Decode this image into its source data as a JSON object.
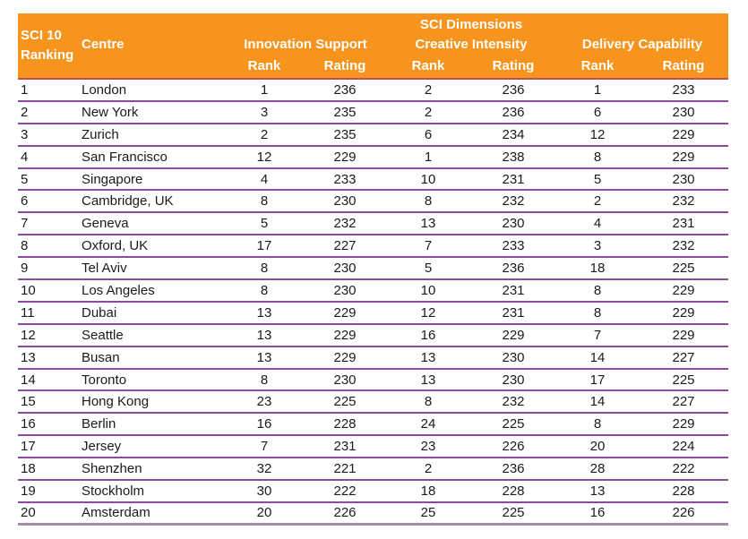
{
  "colors": {
    "header_bg": "#F7941D",
    "header_text": "#FFFFFF",
    "header_underline": "#C0504D",
    "row_line": "#8A4B9C",
    "bottom_line": "#A48BAD",
    "body_text": "#1A1A1A"
  },
  "table": {
    "header": {
      "dimensions_title": "SCI Dimensions",
      "col_ranking": "SCI 10 Ranking",
      "col_centre": "Centre",
      "group_innovation": "Innovation Support",
      "group_creative": "Creative Intensity",
      "group_delivery": "Delivery Capability",
      "sub_rank": "Rank",
      "sub_rating": "Rating"
    },
    "rows": [
      {
        "ranking": "1",
        "centre": "London",
        "is_rank": "1",
        "is_rating": "236",
        "ci_rank": "2",
        "ci_rating": "236",
        "dc_rank": "1",
        "dc_rating": "233"
      },
      {
        "ranking": "2",
        "centre": "New York",
        "is_rank": "3",
        "is_rating": "235",
        "ci_rank": "2",
        "ci_rating": "236",
        "dc_rank": "6",
        "dc_rating": "230"
      },
      {
        "ranking": "3",
        "centre": "Zurich",
        "is_rank": "2",
        "is_rating": "235",
        "ci_rank": "6",
        "ci_rating": "234",
        "dc_rank": "12",
        "dc_rating": "229"
      },
      {
        "ranking": "4",
        "centre": "San Francisco",
        "is_rank": "12",
        "is_rating": "229",
        "ci_rank": "1",
        "ci_rating": "238",
        "dc_rank": "8",
        "dc_rating": "229"
      },
      {
        "ranking": "5",
        "centre": "Singapore",
        "is_rank": "4",
        "is_rating": "233",
        "ci_rank": "10",
        "ci_rating": "231",
        "dc_rank": "5",
        "dc_rating": "230"
      },
      {
        "ranking": "6",
        "centre": "Cambridge, UK",
        "is_rank": "8",
        "is_rating": "230",
        "ci_rank": "8",
        "ci_rating": "232",
        "dc_rank": "2",
        "dc_rating": "232"
      },
      {
        "ranking": "7",
        "centre": "Geneva",
        "is_rank": "5",
        "is_rating": "232",
        "ci_rank": "13",
        "ci_rating": "230",
        "dc_rank": "4",
        "dc_rating": "231"
      },
      {
        "ranking": "8",
        "centre": "Oxford, UK",
        "is_rank": "17",
        "is_rating": "227",
        "ci_rank": "7",
        "ci_rating": "233",
        "dc_rank": "3",
        "dc_rating": "232"
      },
      {
        "ranking": "9",
        "centre": "Tel Aviv",
        "is_rank": "8",
        "is_rating": "230",
        "ci_rank": "5",
        "ci_rating": "236",
        "dc_rank": "18",
        "dc_rating": "225"
      },
      {
        "ranking": "10",
        "centre": "Los Angeles",
        "is_rank": "8",
        "is_rating": "230",
        "ci_rank": "10",
        "ci_rating": "231",
        "dc_rank": "8",
        "dc_rating": "229"
      },
      {
        "ranking": "11",
        "centre": "Dubai",
        "is_rank": "13",
        "is_rating": "229",
        "ci_rank": "12",
        "ci_rating": "231",
        "dc_rank": "8",
        "dc_rating": "229"
      },
      {
        "ranking": "12",
        "centre": "Seattle",
        "is_rank": "13",
        "is_rating": "229",
        "ci_rank": "16",
        "ci_rating": "229",
        "dc_rank": "7",
        "dc_rating": "229"
      },
      {
        "ranking": "13",
        "centre": "Busan",
        "is_rank": "13",
        "is_rating": "229",
        "ci_rank": "13",
        "ci_rating": "230",
        "dc_rank": "14",
        "dc_rating": "227"
      },
      {
        "ranking": "14",
        "centre": "Toronto",
        "is_rank": "8",
        "is_rating": "230",
        "ci_rank": "13",
        "ci_rating": "230",
        "dc_rank": "17",
        "dc_rating": "225"
      },
      {
        "ranking": "15",
        "centre": "Hong Kong",
        "is_rank": "23",
        "is_rating": "225",
        "ci_rank": "8",
        "ci_rating": "232",
        "dc_rank": "14",
        "dc_rating": "227"
      },
      {
        "ranking": "16",
        "centre": "Berlin",
        "is_rank": "16",
        "is_rating": "228",
        "ci_rank": "24",
        "ci_rating": "225",
        "dc_rank": "8",
        "dc_rating": "229"
      },
      {
        "ranking": "17",
        "centre": "Jersey",
        "is_rank": "7",
        "is_rating": "231",
        "ci_rank": "23",
        "ci_rating": "226",
        "dc_rank": "20",
        "dc_rating": "224"
      },
      {
        "ranking": "18",
        "centre": "Shenzhen",
        "is_rank": "32",
        "is_rating": "221",
        "ci_rank": "2",
        "ci_rating": "236",
        "dc_rank": "28",
        "dc_rating": "222"
      },
      {
        "ranking": "19",
        "centre": "Stockholm",
        "is_rank": "30",
        "is_rating": "222",
        "ci_rank": "18",
        "ci_rating": "228",
        "dc_rank": "13",
        "dc_rating": "228"
      },
      {
        "ranking": "20",
        "centre": "Amsterdam",
        "is_rank": "20",
        "is_rating": "226",
        "ci_rank": "25",
        "ci_rating": "225",
        "dc_rank": "16",
        "dc_rating": "226"
      }
    ]
  }
}
